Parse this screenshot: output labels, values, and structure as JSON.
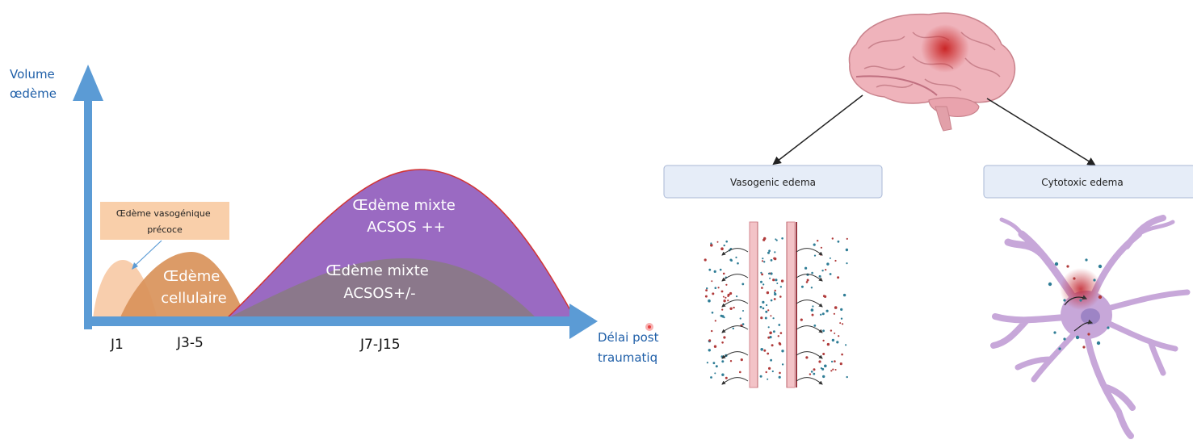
{
  "left_chart": {
    "y_axis_label": [
      "Volume",
      "œdème"
    ],
    "x_axis_label": [
      "Délai post",
      "traumatiq"
    ],
    "ticks": [
      "J1",
      "J3-5",
      "J7-J15"
    ],
    "callout": [
      "Œdème vasogénique",
      "précoce"
    ],
    "waves": {
      "cellular": [
        "Œdème",
        "cellulaire"
      ],
      "mixed_high": [
        "Œdème mixte",
        "ACSOS ++"
      ],
      "mixed_low": [
        "Œdème mixte",
        "ACSOS+/-"
      ]
    },
    "colors": {
      "axis": "#5b9bd5",
      "early": "#f8cba9",
      "cellular": "#d9935a",
      "mixed_high": "#9a6ac2",
      "mixed_low": "#8a7a86",
      "callout_box": "#f9cfaa"
    }
  },
  "right_diagram": {
    "boxes": {
      "vasogenic": "Vasogenic edema",
      "cytotoxic": "Cytotoxic edema"
    },
    "colors": {
      "box_fill": "#e6edf8",
      "box_border": "#a9b8d6",
      "brain": "#efb3bb",
      "lesion": "#cc2a2a",
      "neuron": "#c7a7d9",
      "vessel": "#f3c3c7",
      "dot_teal": "#2f7d96",
      "dot_red": "#b03a3a"
    }
  }
}
